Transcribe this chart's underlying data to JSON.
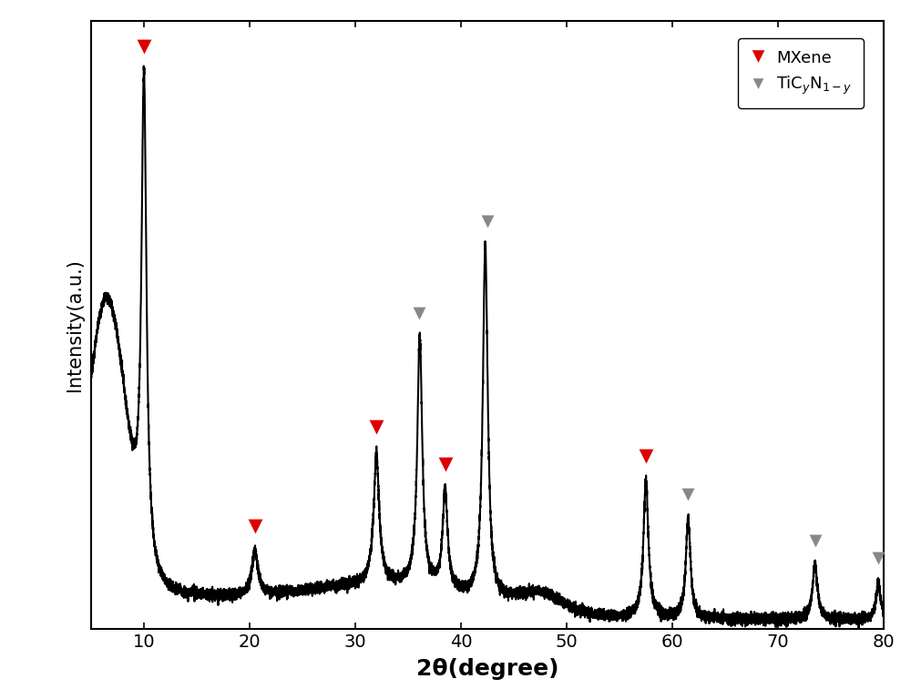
{
  "xlim": [
    5,
    80
  ],
  "ylim": [
    0,
    1.08
  ],
  "xlabel": "2θ(degree)",
  "ylabel": "Intensity(a.u.)",
  "xlabel_fontsize": 18,
  "ylabel_fontsize": 15,
  "tick_fontsize": 14,
  "background_color": "#ffffff",
  "line_color": "#000000",
  "line_width": 1.5,
  "red_marker_color": "#dd0000",
  "gray_marker_color": "#888888",
  "red_peaks": [
    10.0,
    20.5,
    32.0,
    38.5,
    57.5
  ],
  "gray_peaks": [
    36.0,
    42.5,
    61.5,
    73.5,
    79.5
  ],
  "xticks": [
    10,
    20,
    30,
    40,
    50,
    60,
    70,
    80
  ],
  "legend_labels": [
    "MXene",
    "TiC$_y$N$_{1-y}$"
  ],
  "figure_size": [
    10.0,
    7.68
  ],
  "dpi": 100
}
